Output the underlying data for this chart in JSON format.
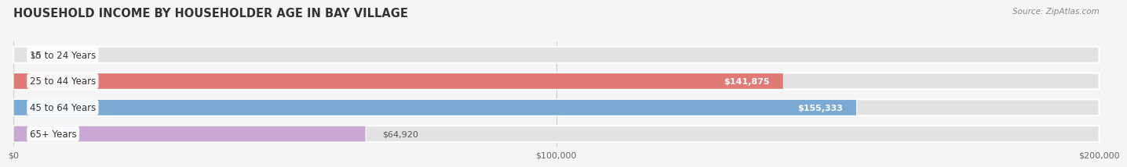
{
  "title": "HOUSEHOLD INCOME BY HOUSEHOLDER AGE IN BAY VILLAGE",
  "source": "Source: ZipAtlas.com",
  "categories": [
    "15 to 24 Years",
    "25 to 44 Years",
    "45 to 64 Years",
    "65+ Years"
  ],
  "values": [
    0,
    141875,
    155333,
    64920
  ],
  "bar_colors": [
    "#f5c9a0",
    "#e07a74",
    "#7aaad4",
    "#c9a8d4"
  ],
  "xmax": 200000,
  "xtick_labels": [
    "$0",
    "$100,000",
    "$200,000"
  ],
  "bar_height": 0.62,
  "background_color": "#f5f5f5",
  "bar_background_color": "#e2e2e2",
  "value_labels": [
    "$0",
    "$141,875",
    "$155,333",
    "$64,920"
  ],
  "value_label_inside": [
    false,
    true,
    true,
    false
  ],
  "title_fontsize": 10.5,
  "source_fontsize": 7.5,
  "label_fontsize": 8.5,
  "value_fontsize": 8.0
}
